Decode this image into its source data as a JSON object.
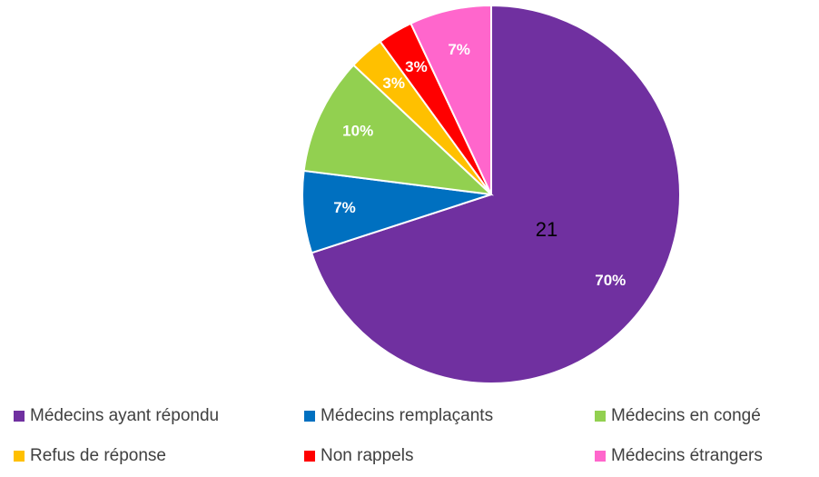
{
  "chart_data": {
    "type": "pie",
    "categories": [
      "Médecins ayant répondu",
      "Médecins remplaçants",
      "Médecins en congé",
      "Refus de réponse",
      "Non rappels",
      "Médecins étrangers"
    ],
    "values": [
      70,
      7,
      10,
      3,
      3,
      7
    ],
    "value_labels": [
      "70%",
      "7%",
      "10%",
      "3%",
      "3%",
      "7%"
    ],
    "colors": [
      "#7030a0",
      "#0070c0",
      "#92d050",
      "#ffc000",
      "#ff0000",
      "#ff66cc"
    ],
    "annotation": "21",
    "legend": "bottom"
  }
}
